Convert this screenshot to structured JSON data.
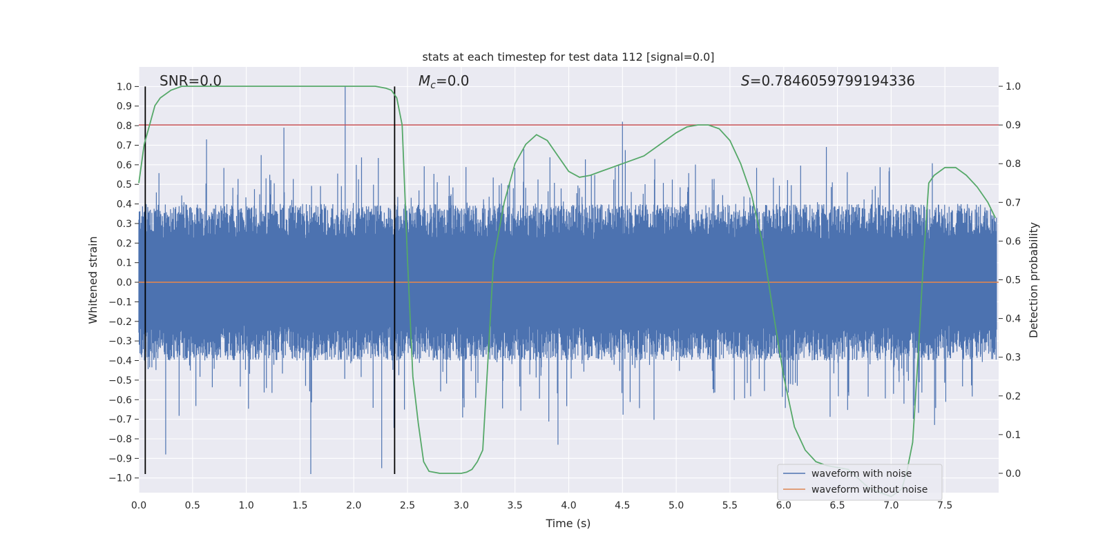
{
  "chart_data": {
    "type": "line",
    "title": "stats at each timestep for test data 112 [signal=0.0]",
    "xlabel": "Time (s)",
    "ylabel": "Whitened strain",
    "ylabel_right": "Detection probability",
    "xlim": [
      0.0,
      8.0
    ],
    "ylim": [
      -1.075,
      1.1
    ],
    "ylim_right": [
      -0.05,
      1.05
    ],
    "x_ticks": [
      "0.0",
      "0.5",
      "1.0",
      "1.5",
      "2.0",
      "2.5",
      "3.0",
      "3.5",
      "4.0",
      "4.5",
      "5.0",
      "5.5",
      "6.0",
      "6.5",
      "7.0",
      "7.5"
    ],
    "y_ticks": [
      "−1.0",
      "−0.9",
      "−0.8",
      "−0.7",
      "−0.6",
      "−0.5",
      "−0.4",
      "−0.3",
      "−0.2",
      "−0.1",
      "0.0",
      "0.1",
      "0.2",
      "0.3",
      "0.4",
      "0.5",
      "0.6",
      "0.7",
      "0.8",
      "0.9",
      "1.0"
    ],
    "y_right_ticks": [
      "0.0",
      "0.1",
      "0.2",
      "0.3",
      "0.4",
      "0.5",
      "0.6",
      "0.7",
      "0.8",
      "0.9",
      "1.0"
    ],
    "grid": true,
    "legend_placement": "lower-right",
    "colors": {
      "noise": "#4c72b0",
      "clean": "#dd8452",
      "probability": "#55a868",
      "threshold": "#c44e52",
      "marker": "#000000",
      "background": "#eaeaf2"
    },
    "series": [
      {
        "name": "waveform with noise",
        "kind": "noise",
        "envelope": 0.4,
        "min": -0.98,
        "max": 1.0
      },
      {
        "name": "waveform without noise",
        "kind": "flat",
        "values": [
          0.0,
          0.0
        ]
      }
    ],
    "probability_curve": {
      "x": [
        0.0,
        0.05,
        0.1,
        0.15,
        0.2,
        0.3,
        0.4,
        0.6,
        1.0,
        1.5,
        2.0,
        2.2,
        2.3,
        2.35,
        2.4,
        2.45,
        2.5,
        2.55,
        2.6,
        2.65,
        2.7,
        2.8,
        2.9,
        3.0,
        3.05,
        3.1,
        3.15,
        3.2,
        3.25,
        3.3,
        3.4,
        3.5,
        3.6,
        3.7,
        3.8,
        3.9,
        4.0,
        4.1,
        4.2,
        4.3,
        4.5,
        4.7,
        4.9,
        5.0,
        5.1,
        5.2,
        5.3,
        5.4,
        5.5,
        5.6,
        5.7,
        5.8,
        5.9,
        6.0,
        6.1,
        6.2,
        6.3,
        6.4,
        6.6,
        6.8,
        7.0,
        7.1,
        7.15,
        7.2,
        7.25,
        7.3,
        7.35,
        7.4,
        7.5,
        7.6,
        7.7,
        7.8,
        7.9,
        7.97
      ],
      "y": [
        0.75,
        0.85,
        0.9,
        0.95,
        0.97,
        0.99,
        1.0,
        1.0,
        1.0,
        1.0,
        1.0,
        1.0,
        0.995,
        0.99,
        0.97,
        0.9,
        0.55,
        0.25,
        0.13,
        0.03,
        0.005,
        0.0,
        0.0,
        0.0,
        0.003,
        0.01,
        0.03,
        0.06,
        0.3,
        0.55,
        0.7,
        0.8,
        0.85,
        0.875,
        0.86,
        0.82,
        0.78,
        0.765,
        0.77,
        0.78,
        0.8,
        0.82,
        0.86,
        0.88,
        0.895,
        0.9,
        0.9,
        0.89,
        0.86,
        0.8,
        0.72,
        0.6,
        0.42,
        0.25,
        0.12,
        0.06,
        0.03,
        0.02,
        0.01,
        -0.04,
        -0.06,
        -0.04,
        0.01,
        0.08,
        0.3,
        0.55,
        0.75,
        0.77,
        0.79,
        0.79,
        0.77,
        0.74,
        0.7,
        0.66
      ]
    },
    "threshold_line": {
      "y_right": 0.9
    },
    "marker_lines": [
      0.06,
      2.38
    ],
    "annotations": [
      "SNR=0.0",
      "=0.0",
      "=0.7846059799194336"
    ],
    "annotation_symbols": [
      "M",
      "c",
      "S"
    ]
  }
}
